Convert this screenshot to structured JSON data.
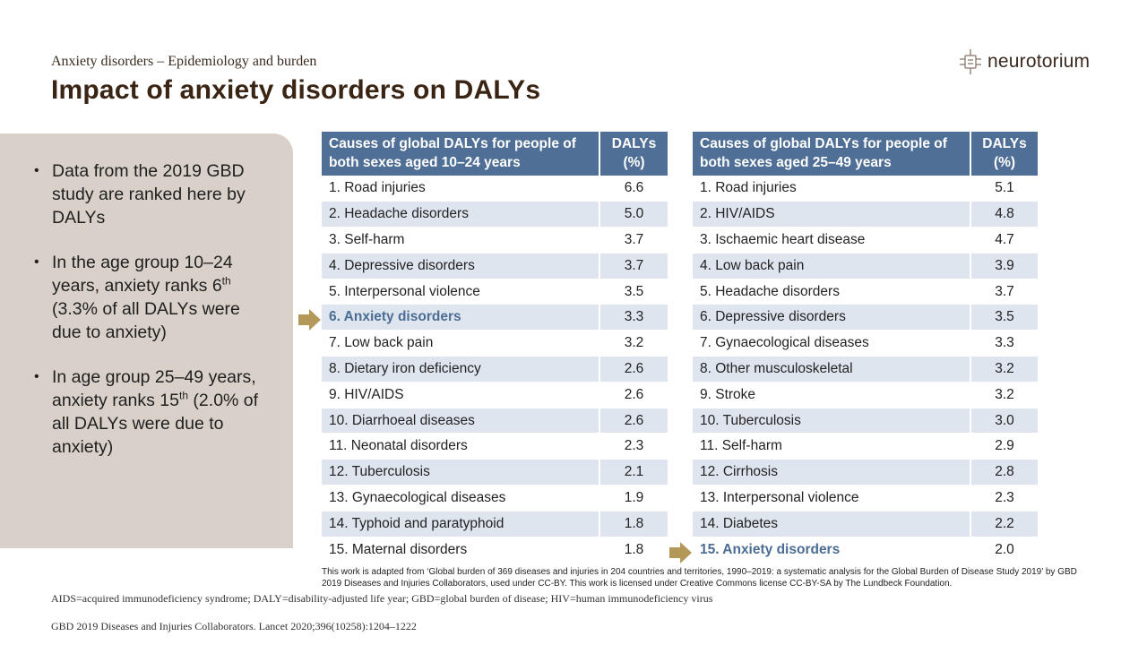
{
  "header": {
    "subtitle": "Anxiety disorders – Epidemiology and burden",
    "title": "Impact of anxiety disorders on DALYs"
  },
  "logo": {
    "text": "neurotorium",
    "icon": "neuron-logo-icon"
  },
  "bullets": [
    {
      "text": "Data from the 2019 GBD study are ranked here by DALYs"
    },
    {
      "pre": "In the age group 10–24 years, anxiety ranks 6",
      "sup": "th",
      "post": " (3.3% of all DALYs were due to anxiety)"
    },
    {
      "pre": "In age group 25–49 years, anxiety ranks 15",
      "sup": "th",
      "post": " (2.0% of all DALYs were due to anxiety)"
    }
  ],
  "table_left": {
    "header_cause": "Causes of global DALYs for people of both sexes aged 10–24 years",
    "header_value": "DALYs (%)",
    "highlight_index": 5,
    "rows": [
      {
        "cause": "1. Road injuries",
        "value": "6.6"
      },
      {
        "cause": "2. Headache disorders",
        "value": "5.0"
      },
      {
        "cause": "3. Self-harm",
        "value": "3.7"
      },
      {
        "cause": "4. Depressive disorders",
        "value": "3.7"
      },
      {
        "cause": "5. Interpersonal violence",
        "value": "3.5"
      },
      {
        "cause": "6. Anxiety disorders",
        "value": "3.3"
      },
      {
        "cause": "7. Low back pain",
        "value": "3.2"
      },
      {
        "cause": "8. Dietary iron deficiency",
        "value": "2.6"
      },
      {
        "cause": "9. HIV/AIDS",
        "value": "2.6"
      },
      {
        "cause": "10. Diarrhoeal diseases",
        "value": "2.6"
      },
      {
        "cause": "11. Neonatal disorders",
        "value": "2.3"
      },
      {
        "cause": "12. Tuberculosis",
        "value": "2.1"
      },
      {
        "cause": "13. Gynaecological diseases",
        "value": "1.9"
      },
      {
        "cause": "14. Typhoid and paratyphoid",
        "value": "1.8"
      },
      {
        "cause": "15. Maternal disorders",
        "value": "1.8"
      }
    ]
  },
  "table_right": {
    "header_cause": "Causes of global DALYs for people of both sexes aged 25–49 years",
    "header_value": "DALYs (%)",
    "highlight_index": 14,
    "rows": [
      {
        "cause": "1. Road injuries",
        "value": "5.1"
      },
      {
        "cause": "2. HIV/AIDS",
        "value": "4.8"
      },
      {
        "cause": "3. Ischaemic heart disease",
        "value": "4.7"
      },
      {
        "cause": "4. Low back pain",
        "value": "3.9"
      },
      {
        "cause": "5. Headache disorders",
        "value": "3.7"
      },
      {
        "cause": "6. Depressive disorders",
        "value": "3.5"
      },
      {
        "cause": "7. Gynaecological diseases",
        "value": "3.3"
      },
      {
        "cause": "8. Other musculoskeletal",
        "value": "3.2"
      },
      {
        "cause": "9. Stroke",
        "value": "3.2"
      },
      {
        "cause": "10. Tuberculosis",
        "value": "3.0"
      },
      {
        "cause": "11. Self-harm",
        "value": "2.9"
      },
      {
        "cause": "12. Cirrhosis",
        "value": "2.8"
      },
      {
        "cause": "13. Interpersonal violence",
        "value": "2.3"
      },
      {
        "cause": "14. Diabetes",
        "value": "2.2"
      },
      {
        "cause": "15. Anxiety disorders",
        "value": "2.0"
      }
    ]
  },
  "colors": {
    "header_bg": "#4f6f96",
    "stripe": "#dfe5ef",
    "highlight_text": "#4b6d93",
    "arrow": "#b4985a",
    "side_panel": "#d9d0c9"
  },
  "footer": {
    "attribution": "This work is adapted from ‘Global burden of 369 diseases and injuries in 204 countries and territories, 1990–2019: a systematic analysis for the Global Burden of Disease Study 2019’ by GBD 2019 Diseases and Injuries Collaborators, used under CC-BY. This work is licensed under Creative Commons license CC-BY-SA by The Lundbeck Foundation.",
    "abbreviations": "AIDS=acquired immunodeficiency syndrome; DALY=disability-adjusted life year; GBD=global burden of disease; HIV=human immunodeficiency virus",
    "reference": "GBD 2019 Diseases and Injuries Collaborators. Lancet 2020;396(10258):1204–1222"
  }
}
